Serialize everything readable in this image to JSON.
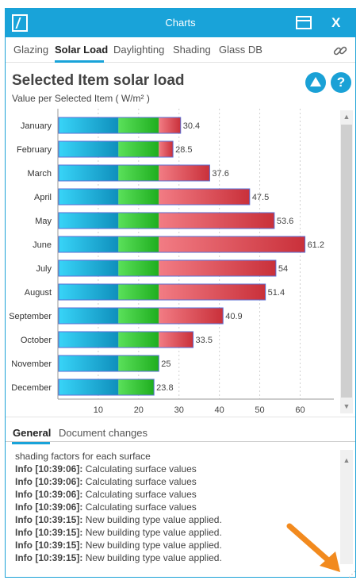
{
  "window": {
    "title": "Charts",
    "close_label": "X"
  },
  "tabs": [
    {
      "label": "Glazing",
      "active": false
    },
    {
      "label": "Solar Load",
      "active": true
    },
    {
      "label": "Daylighting",
      "active": false
    },
    {
      "label": "Shading",
      "active": false
    },
    {
      "label": "Glass DB",
      "active": false
    }
  ],
  "panel": {
    "title": "Selected Item solar load",
    "subtitle": "Value per Selected Item ( W/m² )",
    "up_icon": "triangle-up-icon",
    "help_label": "?"
  },
  "chart_data": {
    "type": "bar",
    "orientation": "horizontal",
    "stacked": true,
    "title": "Selected Item solar load",
    "subtitle": "Value per Selected Item ( W/m² )",
    "categories": [
      "January",
      "February",
      "March",
      "April",
      "May",
      "June",
      "July",
      "August",
      "September",
      "October",
      "November",
      "December"
    ],
    "values": [
      30.4,
      28.5,
      37.6,
      47.5,
      53.6,
      61.2,
      54,
      51.4,
      40.9,
      33.5,
      25,
      23.8
    ],
    "value_labels": [
      "30.4",
      "28.5",
      "37.6",
      "47.5",
      "53.6",
      "61.2",
      "54",
      "51.4",
      "40.9",
      "33.5",
      "25",
      "23.8"
    ],
    "segment_breaks": [
      15,
      25
    ],
    "segment_colors": [
      "#1ab8e6",
      "#33cc33",
      "#e8636c"
    ],
    "xlim": [
      0,
      66
    ],
    "xticks": [
      10,
      20,
      30,
      40,
      50,
      60
    ],
    "grid": true
  },
  "bottom_tabs": [
    {
      "label": "General",
      "active": true
    },
    {
      "label": "Document changes",
      "active": false
    }
  ],
  "log": {
    "first_line": "shading factors for each surface",
    "entries": [
      {
        "ts": "Info [10:39:06]:",
        "msg": " Calculating surface values"
      },
      {
        "ts": "Info [10:39:06]:",
        "msg": " Calculating surface values"
      },
      {
        "ts": "Info [10:39:06]:",
        "msg": " Calculating surface values"
      },
      {
        "ts": "Info [10:39:06]:",
        "msg": " Calculating surface values"
      },
      {
        "ts": "Info [10:39:15]:",
        "msg": " New building type value applied."
      },
      {
        "ts": "Info [10:39:15]:",
        "msg": " New building type value applied."
      },
      {
        "ts": "Info [10:39:15]:",
        "msg": " New building type value applied."
      },
      {
        "ts": "Info [10:39:15]:",
        "msg": " New building type value applied."
      }
    ]
  },
  "colors": {
    "accent": "#19a3d9",
    "annotation_arrow": "#f28a1e"
  }
}
